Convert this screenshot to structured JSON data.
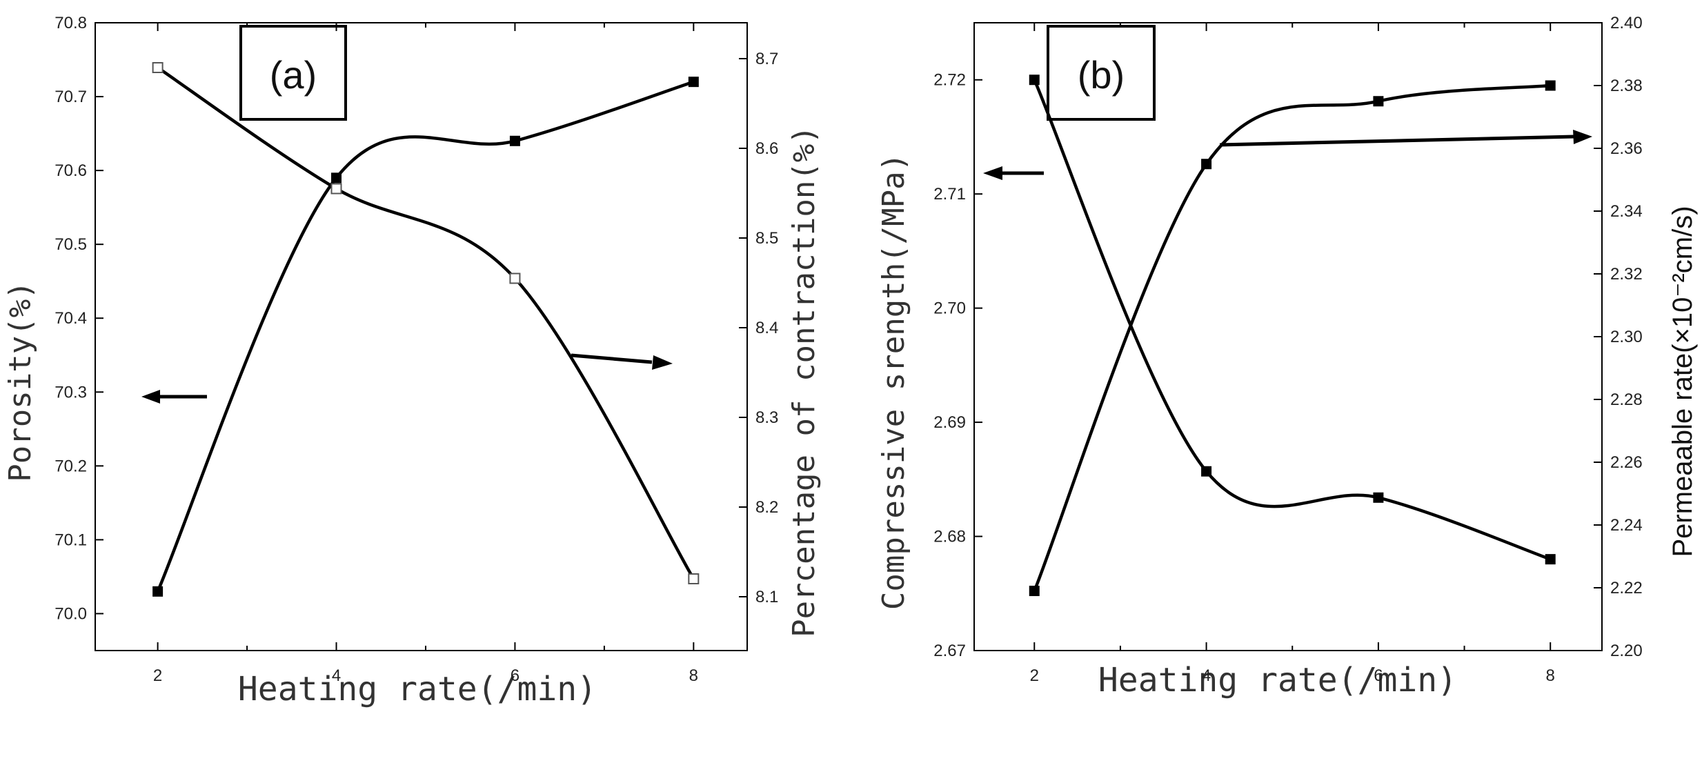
{
  "chart_data": [
    {
      "type": "line",
      "panel_label": "(a)",
      "xlabel": "Heating rate(/min)",
      "ylabel": "Porosity(%)",
      "ylabel_right": "Percentage of contraction(%)",
      "x": [
        2,
        4,
        6,
        8
      ],
      "xlim": [
        1.3,
        8.6
      ],
      "x_ticks": [
        "2",
        "4",
        "6",
        "8"
      ],
      "ylim": [
        69.95,
        70.8
      ],
      "y_ticks": [
        "70.0",
        "70.1",
        "70.2",
        "70.3",
        "70.4",
        "70.5",
        "70.6",
        "70.7",
        "70.8"
      ],
      "ylim_right": [
        8.04,
        8.74
      ],
      "y_ticks_right": [
        "8.1",
        "8.2",
        "8.3",
        "8.4",
        "8.5",
        "8.6",
        "8.7"
      ],
      "series": [
        {
          "axis": "left",
          "marker": "filled-square",
          "values": [
            70.03,
            70.59,
            70.64,
            70.72
          ]
        },
        {
          "axis": "right",
          "marker": "open-square",
          "values": [
            8.69,
            8.555,
            8.455,
            8.12
          ]
        }
      ]
    },
    {
      "type": "line",
      "panel_label": "(b)",
      "xlabel": "Heating rate(/min)",
      "ylabel": "Compressive srength(/MPa)",
      "ylabel_right": "Permeaable rate(×10⁻²cm/s)",
      "x": [
        2,
        4,
        6,
        8
      ],
      "xlim": [
        1.3,
        8.6
      ],
      "x_ticks": [
        "2",
        "4",
        "6",
        "8"
      ],
      "ylim": [
        2.67,
        2.725
      ],
      "y_ticks": [
        "2.67",
        "2.68",
        "2.69",
        "2.70",
        "2.71",
        "2.72"
      ],
      "ylim_right": [
        2.2,
        2.4
      ],
      "y_ticks_right": [
        "2.20",
        "2.22",
        "2.24",
        "2.26",
        "2.28",
        "2.30",
        "2.32",
        "2.34",
        "2.36",
        "2.38",
        "2.40"
      ],
      "series": [
        {
          "axis": "left",
          "marker": "filled-square",
          "values": [
            2.72,
            2.6857,
            2.6834,
            2.678
          ]
        },
        {
          "axis": "right",
          "marker": "filled-square",
          "values": [
            2.219,
            2.355,
            2.375,
            2.38
          ]
        }
      ]
    }
  ]
}
